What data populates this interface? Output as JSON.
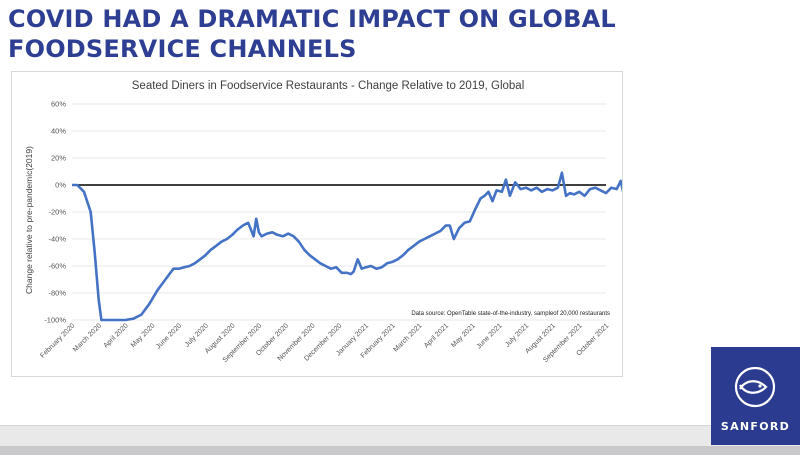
{
  "slide": {
    "headline_line1": "COVID HAD A DRAMATIC IMPACT ON GLOBAL",
    "headline_line2": "FOODSERVICE CHANNELS"
  },
  "logo": {
    "name": "SANFORD",
    "icon": "fish-icon"
  },
  "colors": {
    "headline": "#2e3f93",
    "series": "#4472c4",
    "logo_bg": "#2b3b8f"
  },
  "chart_data": {
    "type": "line",
    "title": "Seated Diners in Foodservice Restaurants - Change Relative to 2019, Global",
    "ylabel": "Change relative to pre-pandemic(2019)",
    "xlabel": "",
    "ylim": [
      -100,
      60
    ],
    "y_ticks": [
      -100,
      -80,
      -60,
      -40,
      -20,
      0,
      20,
      40,
      60
    ],
    "y_tick_labels": [
      "-100%",
      "-80%",
      "-60%",
      "-40%",
      "-20%",
      "0%",
      "20%",
      "40%",
      "60%"
    ],
    "grid": true,
    "x_categories": [
      "February 2020",
      "March 2020",
      "April 2020",
      "May 2020",
      "June 2020",
      "July 2020",
      "August 2020",
      "September 2020",
      "October 2020",
      "November 2020",
      "December 2020",
      "January 2021",
      "February 2021",
      "March 2021",
      "April 2021",
      "May 2021",
      "June 2021",
      "July 2021",
      "August 2021",
      "September 2021",
      "October 2021"
    ],
    "annotation": "Data source: OpenTable state-of-the-industry, sampleof 20,000 restaurants",
    "series": [
      {
        "x": [
          0,
          0.2,
          0.45,
          0.7,
          0.85,
          1.0,
          1.1,
          1.25,
          1.5,
          1.8,
          2.0,
          2.3,
          2.6,
          2.9,
          3.2,
          3.5,
          3.8,
          4.0,
          4.2,
          4.4,
          4.6,
          4.8,
          5.0,
          5.2,
          5.4,
          5.6,
          5.8,
          6.0,
          6.2,
          6.4,
          6.6,
          6.8,
          6.9,
          7.0,
          7.1,
          7.3,
          7.5,
          7.7,
          7.9,
          8.1,
          8.3,
          8.5,
          8.7,
          8.9,
          9.1,
          9.3,
          9.5,
          9.7,
          9.9,
          10.1,
          10.3,
          10.45,
          10.55,
          10.7,
          10.85,
          11.0,
          11.2,
          11.4,
          11.6,
          11.8,
          12.0,
          12.2,
          12.4,
          12.6,
          12.8,
          13.0,
          13.2,
          13.4,
          13.6,
          13.8,
          14.0,
          14.15,
          14.3,
          14.5,
          14.7,
          14.9,
          15.1,
          15.3,
          15.45,
          15.6,
          15.75,
          15.9,
          16.1,
          16.25,
          16.4,
          16.6,
          16.8,
          17.0,
          17.2,
          17.4,
          17.6,
          17.8,
          18.0,
          18.2,
          18.35,
          18.5,
          18.65,
          18.8,
          19.0,
          19.2,
          19.4,
          19.6,
          19.8,
          20.0,
          20.2,
          20.4,
          20.55,
          20.7,
          20.85,
          21.0
        ],
        "y": [
          0,
          0,
          -5,
          -20,
          -50,
          -85,
          -100,
          -100,
          -100,
          -100,
          -100,
          -99,
          -96,
          -88,
          -78,
          -70,
          -62,
          -62,
          -61,
          -60,
          -58,
          -55,
          -52,
          -48,
          -45,
          -42,
          -40,
          -37,
          -33,
          -30,
          -28,
          -38,
          -25,
          -35,
          -38,
          -36,
          -35,
          -37,
          -38,
          -36,
          -38,
          -42,
          -48,
          -52,
          -55,
          -58,
          -60,
          -62,
          -61,
          -65,
          -65,
          -66,
          -64,
          -55,
          -62,
          -61,
          -60,
          -62,
          -61,
          -58,
          -57,
          -55,
          -52,
          -48,
          -45,
          -42,
          -40,
          -38,
          -36,
          -34,
          -30,
          -30,
          -40,
          -32,
          -28,
          -27,
          -18,
          -10,
          -8,
          -5,
          -12,
          -4,
          -5,
          4,
          -8,
          2,
          -3,
          -2,
          -4,
          -2,
          -5,
          -3,
          -4,
          -2,
          9,
          -8,
          -6,
          -7,
          -5,
          -8,
          -3,
          -2,
          -4,
          -6,
          -2,
          -3,
          3,
          -10,
          -4,
          -5
        ]
      }
    ]
  }
}
